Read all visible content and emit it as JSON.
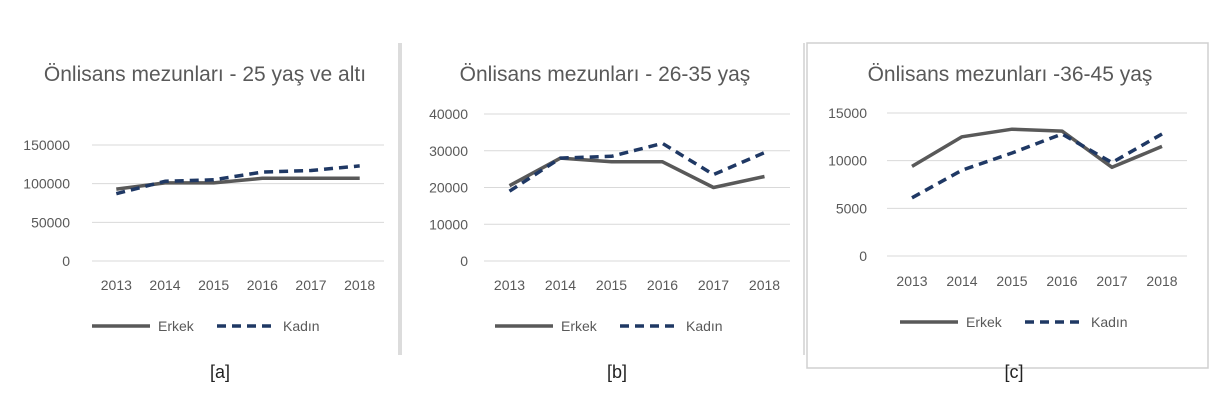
{
  "colors": {
    "erkek": "#595959",
    "kadin": "#1F3864",
    "grid": "#d9d9d9",
    "border": "#d0d0d0"
  },
  "captions": [
    "[a]",
    "[b]",
    "[c]"
  ],
  "chart_data": [
    {
      "type": "line",
      "title": "Önlisans mezunları - 25 yaş ve altı",
      "categories": [
        "2013",
        "2014",
        "2015",
        "2016",
        "2017",
        "2018"
      ],
      "series": [
        {
          "name": "Erkek",
          "values": [
            93000,
            101000,
            101000,
            107000,
            107000,
            107000
          ]
        },
        {
          "name": "Kadın",
          "values": [
            87000,
            103000,
            105000,
            115000,
            117000,
            123000
          ]
        }
      ],
      "ylim": [
        0,
        150000
      ],
      "yticks": [
        "0",
        "50000",
        "100000",
        "150000"
      ],
      "grid": true,
      "legend": "bottom"
    },
    {
      "type": "line",
      "title": "Önlisans mezunları - 26-35 yaş",
      "categories": [
        "2013",
        "2014",
        "2015",
        "2016",
        "2017",
        "2018"
      ],
      "series": [
        {
          "name": "Erkek",
          "values": [
            20500,
            28000,
            27000,
            27000,
            20000,
            23000
          ]
        },
        {
          "name": "Kadın",
          "values": [
            19000,
            28000,
            28500,
            32000,
            23500,
            29500
          ]
        }
      ],
      "ylim": [
        0,
        40000
      ],
      "yticks": [
        "0",
        "10000",
        "20000",
        "30000",
        "40000"
      ],
      "grid": true,
      "legend": "bottom"
    },
    {
      "type": "line",
      "title": "Önlisans mezunları -36-45 yaş",
      "categories": [
        "2013",
        "2014",
        "2015",
        "2016",
        "2017",
        "2018"
      ],
      "series": [
        {
          "name": "Erkek",
          "values": [
            9400,
            12500,
            13300,
            13100,
            9300,
            11500
          ]
        },
        {
          "name": "Kadın",
          "values": [
            6100,
            9000,
            10800,
            12800,
            9800,
            12800
          ]
        }
      ],
      "ylim": [
        0,
        15000
      ],
      "yticks": [
        "0",
        "5000",
        "10000",
        "15000"
      ],
      "grid": true,
      "legend": "bottom"
    }
  ]
}
